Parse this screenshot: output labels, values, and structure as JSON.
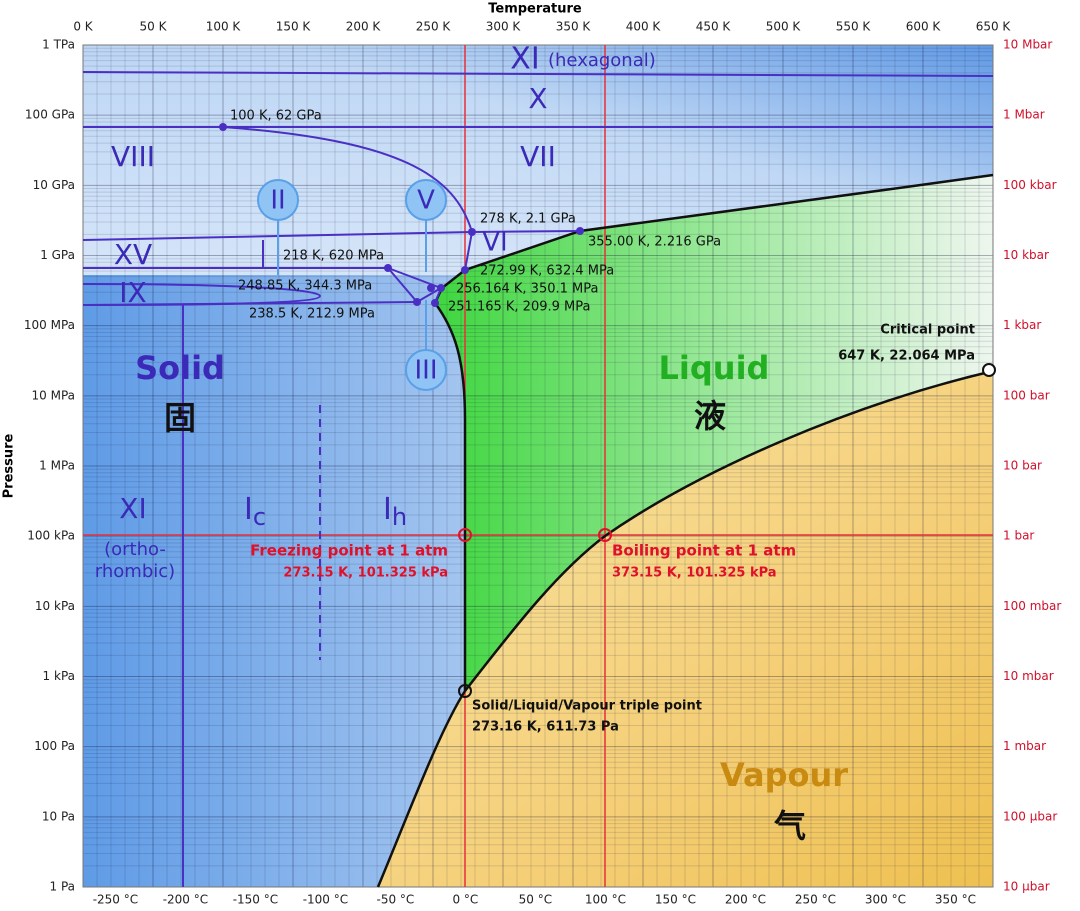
{
  "axes": {
    "top_title": "Temperature",
    "left_title": "Pressure",
    "top_ticks": [
      "0 K",
      "50 K",
      "100 K",
      "150 K",
      "200 K",
      "250 K",
      "300 K",
      "350 K",
      "400 K",
      "450 K",
      "500 K",
      "550 K",
      "600 K",
      "650 K"
    ],
    "bottom_ticks": [
      "-250 °C",
      "-200 °C",
      "-150 °C",
      "-100 °C",
      "-50 °C",
      "0 °C",
      "50 °C",
      "100 °C",
      "150 °C",
      "200 °C",
      "250 °C",
      "300 °C",
      "350 °C"
    ],
    "left_ticks": [
      "1 TPa",
      "100 GPa",
      "10 GPa",
      "1 GPa",
      "100 MPa",
      "10 MPa",
      "1 MPa",
      "100 kPa",
      "10 kPa",
      "1 kPa",
      "100 Pa",
      "10 Pa",
      "1 Pa"
    ],
    "right_ticks": [
      "10 Mbar",
      "1 Mbar",
      "100 kbar",
      "10 kbar",
      "1 kbar",
      "100 bar",
      "10 bar",
      "1 bar",
      "100 mbar",
      "10 mbar",
      "1 mbar",
      "100 µbar",
      "10 µbar"
    ]
  },
  "regions": [
    "XI",
    "(hexagonal)",
    "X",
    "VIII",
    "VII",
    "XV",
    "VI",
    "IX",
    "II",
    "V",
    "III",
    "Solid",
    "固",
    "Liquid",
    "液",
    "Vapour",
    "气",
    "XI",
    "(ortho-",
    "rhombic)",
    "I",
    "c",
    "I",
    "h"
  ],
  "annotations": [
    "100 K, 62 GPa",
    "278 K, 2.1 GPa",
    "355.00 K, 2.216 GPa",
    "218 K, 620 MPa",
    "272.99 K, 632.4 MPa",
    "248.85 K, 344.3 MPa",
    "256.164 K, 350.1 MPa",
    "238.5 K, 212.9 MPa",
    "251.165 K, 209.9 MPa",
    "Critical point",
    "647 K, 22.064 MPa",
    "Freezing point at 1 atm",
    "273.15 K, 101.325 kPa",
    "Boiling point at 1 atm",
    "373.15 K, 101.325 kPa",
    "Solid/Liquid/Vapour triple point",
    "273.16 K, 611.73 Pa"
  ]
}
